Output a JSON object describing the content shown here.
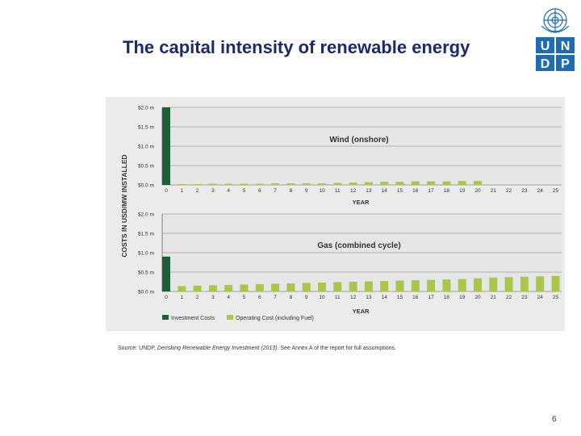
{
  "slide": {
    "title": "The capital intensity of renewable energy",
    "source_prefix": "Source: UNDP, ",
    "source_italic": "Derisking Renewable Energy Investment (2013)",
    "source_suffix": ". See Annex A of the report for full assumptions.",
    "page_number": "6"
  },
  "logo": {
    "letters": [
      "U",
      "N",
      "D",
      "P"
    ],
    "color": "#1f6cb5"
  },
  "colors": {
    "investment": "#1e5d35",
    "operating": "#a8c64a",
    "grid": "#a0a0a0",
    "panel": "#ebebeb"
  },
  "chart_data": [
    {
      "type": "bar",
      "title": "Wind (onshore)",
      "xlabel": "YEAR",
      "ylabel": "COSTS IN USD/MW INSTALLED",
      "ylim": [
        0,
        2.0
      ],
      "yticks": [
        "$0.0 m",
        "$0.5 m",
        "$1.0 m",
        "$1.5 m",
        "$2.0 m"
      ],
      "categories": [
        "0",
        "1",
        "2",
        "3",
        "4",
        "5",
        "6",
        "7",
        "8",
        "9",
        "10",
        "11",
        "12",
        "13",
        "14",
        "15",
        "16",
        "17",
        "18",
        "19",
        "20",
        "21",
        "22",
        "23",
        "24",
        "25"
      ],
      "series": [
        {
          "name": "Investment Costs",
          "values": [
            2.0,
            0,
            0,
            0,
            0,
            0,
            0,
            0,
            0,
            0,
            0,
            0,
            0,
            0,
            0,
            0,
            0,
            0,
            0,
            0,
            0,
            0,
            0,
            0,
            0,
            0
          ]
        },
        {
          "name": "Operating Cost (including Fuel)",
          "values": [
            0,
            0.02,
            0.02,
            0.03,
            0.03,
            0.03,
            0.03,
            0.04,
            0.04,
            0.04,
            0.04,
            0.05,
            0.06,
            0.07,
            0.08,
            0.08,
            0.09,
            0.09,
            0.09,
            0.1,
            0.1,
            0,
            0,
            0,
            0,
            0
          ]
        }
      ]
    },
    {
      "type": "bar",
      "title": "Gas (combined cycle)",
      "xlabel": "YEAR",
      "ylabel": "COSTS IN USD/MW INSTALLED",
      "ylim": [
        0,
        2.0
      ],
      "yticks": [
        "$0.0 m",
        "$0.5 m",
        "$1.0 m",
        "$1.5 m",
        "$2.0 m"
      ],
      "categories": [
        "0",
        "1",
        "2",
        "3",
        "4",
        "5",
        "6",
        "7",
        "8",
        "9",
        "10",
        "11",
        "12",
        "13",
        "14",
        "15",
        "16",
        "17",
        "18",
        "19",
        "20",
        "21",
        "22",
        "23",
        "24",
        "25"
      ],
      "series": [
        {
          "name": "Investment Costs",
          "values": [
            0.9,
            0,
            0,
            0,
            0,
            0,
            0,
            0,
            0,
            0,
            0,
            0,
            0,
            0,
            0,
            0,
            0,
            0,
            0,
            0,
            0,
            0,
            0,
            0,
            0,
            0
          ]
        },
        {
          "name": "Operating Cost (including Fuel)",
          "values": [
            0,
            0.14,
            0.15,
            0.16,
            0.17,
            0.18,
            0.19,
            0.2,
            0.21,
            0.22,
            0.23,
            0.24,
            0.25,
            0.26,
            0.27,
            0.28,
            0.29,
            0.3,
            0.31,
            0.32,
            0.34,
            0.36,
            0.37,
            0.38,
            0.39,
            0.4
          ]
        }
      ]
    }
  ],
  "legend": [
    "Investment Costs",
    "Operating Cost (including Fuel)"
  ]
}
